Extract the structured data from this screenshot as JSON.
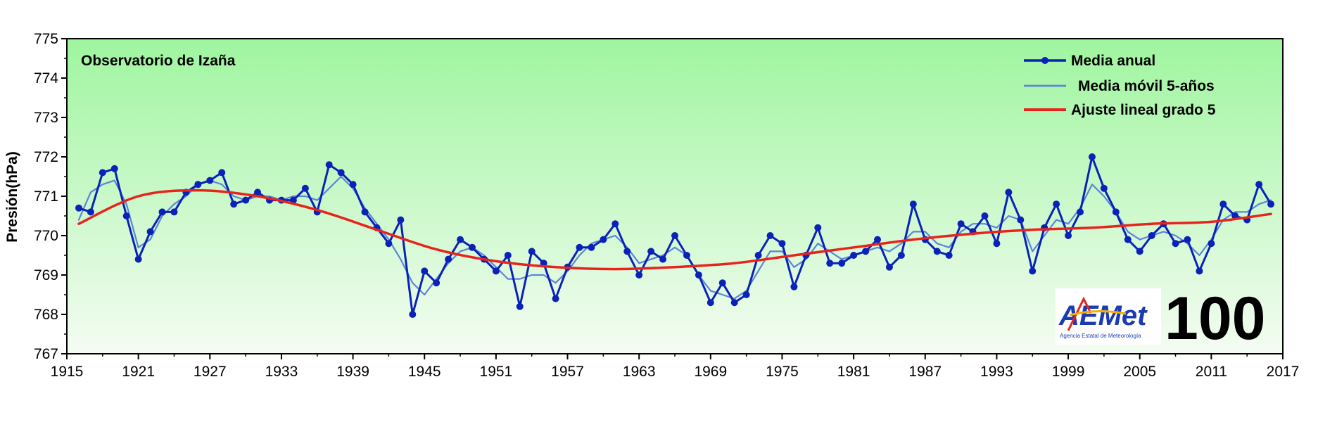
{
  "chart_data": {
    "type": "line",
    "station_label": "Observatorio de Izaña",
    "ylabel": "Presión(hPa)",
    "xlabel": "",
    "xlim": [
      1915,
      2017
    ],
    "ylim": [
      767,
      775
    ],
    "x_ticks": [
      "1915",
      "1921",
      "1927",
      "1933",
      "1939",
      "1945",
      "1951",
      "1957",
      "1963",
      "1969",
      "1975",
      "1981",
      "1987",
      "1993",
      "1999",
      "2005",
      "2011",
      "2017"
    ],
    "y_ticks": [
      "767",
      "768",
      "769",
      "770",
      "771",
      "772",
      "773",
      "774",
      "775"
    ],
    "grid": false,
    "legend_position": "top-right",
    "background_gradient": [
      "#9ff59f",
      "#f4fcf2"
    ],
    "series": [
      {
        "name": "Media anual",
        "color": "#0a22b8",
        "marker": "circle",
        "x": [
          1916,
          1917,
          1918,
          1919,
          1920,
          1921,
          1922,
          1923,
          1924,
          1925,
          1926,
          1927,
          1928,
          1929,
          1930,
          1931,
          1932,
          1933,
          1934,
          1935,
          1936,
          1937,
          1938,
          1939,
          1940,
          1941,
          1942,
          1943,
          1944,
          1945,
          1946,
          1947,
          1948,
          1949,
          1950,
          1951,
          1952,
          1953,
          1954,
          1955,
          1956,
          1957,
          1958,
          1959,
          1960,
          1961,
          1962,
          1963,
          1964,
          1965,
          1966,
          1967,
          1968,
          1969,
          1970,
          1971,
          1972,
          1973,
          1974,
          1975,
          1976,
          1977,
          1978,
          1979,
          1980,
          1981,
          1982,
          1983,
          1984,
          1985,
          1986,
          1987,
          1988,
          1989,
          1990,
          1991,
          1992,
          1993,
          1994,
          1995,
          1996,
          1997,
          1998,
          1999,
          2000,
          2001,
          2002,
          2003,
          2004,
          2005,
          2006,
          2007,
          2008,
          2009,
          2010,
          2011,
          2012,
          2013,
          2014,
          2015,
          2016
        ],
        "values": [
          770.7,
          770.6,
          771.6,
          771.7,
          770.5,
          769.4,
          770.1,
          770.6,
          770.6,
          771.1,
          771.3,
          771.4,
          771.6,
          770.8,
          770.9,
          771.1,
          770.9,
          770.9,
          770.9,
          771.2,
          770.6,
          771.8,
          771.6,
          771.3,
          770.6,
          770.2,
          769.8,
          770.4,
          768.0,
          769.1,
          768.8,
          769.4,
          769.9,
          769.7,
          769.4,
          769.1,
          769.5,
          768.2,
          769.6,
          769.3,
          768.4,
          769.2,
          769.7,
          769.7,
          769.9,
          770.3,
          769.6,
          769.0,
          769.6,
          769.4,
          770.0,
          769.5,
          769.0,
          768.3,
          768.8,
          768.3,
          768.5,
          769.5,
          770.0,
          769.8,
          768.7,
          769.5,
          770.2,
          769.3,
          769.3,
          769.5,
          769.6,
          769.9,
          769.2,
          769.5,
          770.8,
          769.9,
          769.6,
          769.5,
          770.3,
          770.1,
          770.5,
          769.8,
          771.1,
          770.4,
          769.1,
          770.2,
          770.8,
          770.0,
          770.6,
          772.0,
          771.2,
          770.6,
          769.9,
          769.6,
          770.0,
          770.3,
          769.8,
          769.9,
          769.1,
          769.8,
          770.8,
          770.5,
          770.4,
          771.3,
          770.8
        ]
      },
      {
        "name": "Media móvil 5-años",
        "color": "#5b86d8",
        "marker": "none",
        "x": [
          1916,
          1917,
          1918,
          1919,
          1920,
          1921,
          1922,
          1923,
          1924,
          1925,
          1926,
          1927,
          1928,
          1929,
          1930,
          1931,
          1932,
          1933,
          1934,
          1935,
          1936,
          1937,
          1938,
          1939,
          1940,
          1941,
          1942,
          1943,
          1944,
          1945,
          1946,
          1947,
          1948,
          1949,
          1950,
          1951,
          1952,
          1953,
          1954,
          1955,
          1956,
          1957,
          1958,
          1959,
          1960,
          1961,
          1962,
          1963,
          1964,
          1965,
          1966,
          1967,
          1968,
          1969,
          1970,
          1971,
          1972,
          1973,
          1974,
          1975,
          1976,
          1977,
          1978,
          1979,
          1980,
          1981,
          1982,
          1983,
          1984,
          1985,
          1986,
          1987,
          1988,
          1989,
          1990,
          1991,
          1992,
          1993,
          1994,
          1995,
          1996,
          1997,
          1998,
          1999,
          2000,
          2001,
          2002,
          2003,
          2004,
          2005,
          2006,
          2007,
          2008,
          2009,
          2010,
          2011,
          2012,
          2013,
          2014,
          2015,
          2016
        ],
        "values": [
          770.4,
          771.1,
          771.3,
          771.4,
          770.8,
          769.7,
          769.9,
          770.5,
          770.8,
          771.0,
          771.3,
          771.4,
          771.3,
          771.0,
          770.9,
          771.0,
          771.0,
          770.9,
          771.0,
          771.0,
          770.9,
          771.2,
          771.5,
          771.2,
          770.7,
          770.3,
          769.9,
          769.4,
          768.8,
          768.5,
          768.9,
          769.3,
          769.6,
          769.7,
          769.5,
          769.2,
          768.9,
          768.9,
          769.0,
          769.0,
          768.8,
          769.1,
          769.5,
          769.8,
          769.9,
          770.0,
          769.7,
          769.3,
          769.4,
          769.5,
          769.7,
          769.5,
          769.0,
          768.6,
          768.5,
          768.4,
          768.6,
          769.1,
          769.6,
          769.6,
          769.2,
          769.4,
          769.8,
          769.6,
          769.4,
          769.5,
          769.6,
          769.7,
          769.6,
          769.8,
          770.1,
          770.1,
          769.8,
          769.7,
          770.1,
          770.3,
          770.3,
          770.2,
          770.5,
          770.4,
          769.6,
          770.0,
          770.4,
          770.3,
          770.7,
          771.3,
          771.0,
          770.6,
          770.1,
          769.9,
          770.0,
          770.1,
          770.0,
          769.8,
          769.5,
          769.9,
          770.4,
          770.6,
          770.6,
          770.8,
          770.9
        ]
      },
      {
        "name": "Ajuste lineal grado 5",
        "color": "#e8231c",
        "marker": "none",
        "x": [
          1916,
          1921,
          1926,
          1931,
          1936,
          1941,
          1946,
          1951,
          1956,
          1961,
          1966,
          1971,
          1976,
          1981,
          1986,
          1991,
          1996,
          2001,
          2006,
          2011,
          2016
        ],
        "values": [
          770.3,
          771.0,
          771.15,
          771.0,
          770.65,
          770.15,
          769.65,
          769.35,
          769.2,
          769.15,
          769.2,
          769.3,
          769.5,
          769.7,
          769.9,
          770.05,
          770.15,
          770.2,
          770.3,
          770.35,
          770.55
        ]
      }
    ]
  },
  "logo": {
    "brand_text": "AEMet",
    "agency_text": "Agencia Estatal de Meteorología",
    "centenary_text": "100"
  }
}
